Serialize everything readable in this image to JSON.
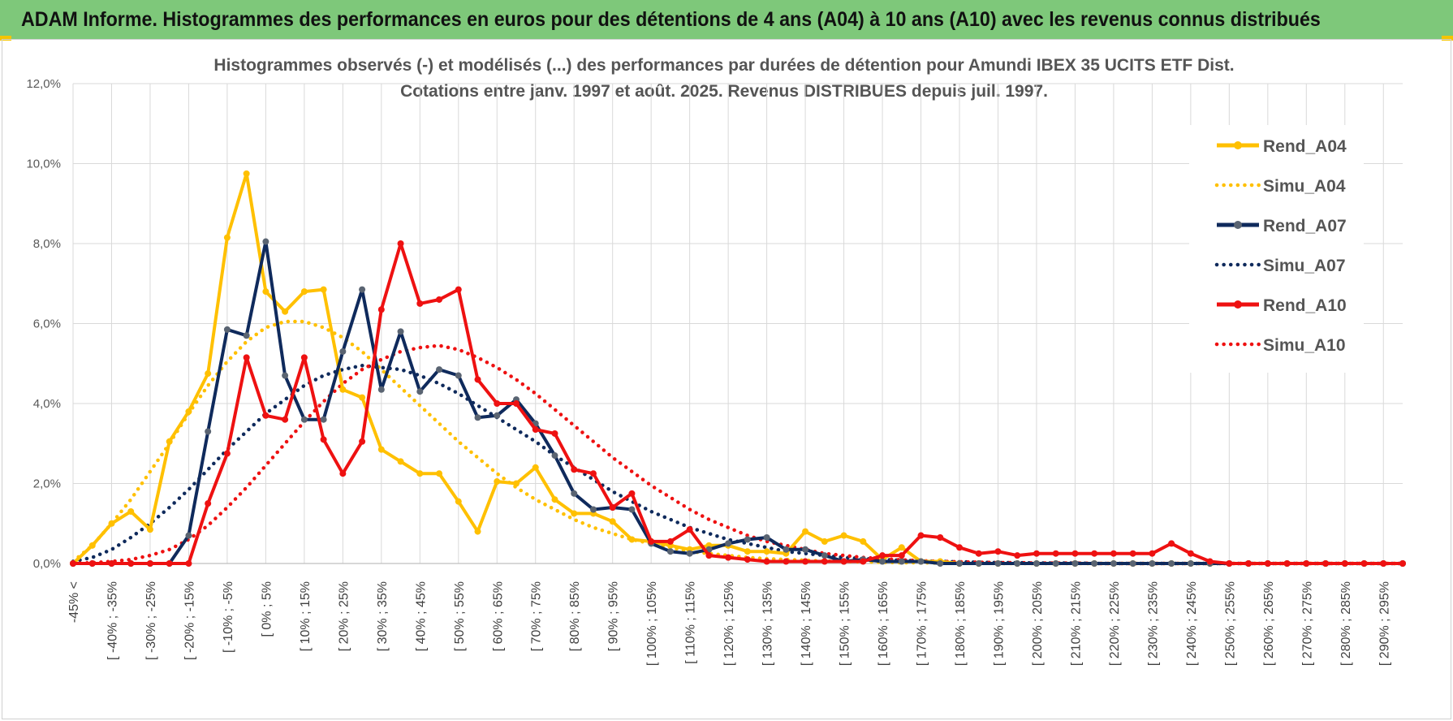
{
  "header": {
    "title": "ADAM Informe. Histogrammes des performances en euros pour des détentions de 4 ans (A04) à 10 ans (A10) avec les revenus connus distribués"
  },
  "chart_data": {
    "type": "line",
    "title": "Histogrammes observés (-) et modélisés (...) des performances par durées de détention pour Amundi IBEX 35 UCITS ETF Dist.",
    "subtitle": "Cotations entre janv. 1997 et août. 2025. Revenus DISTRIBUES depuis juil. 1997.",
    "xlabel": "",
    "ylabel": "",
    "ylim": [
      0,
      12
    ],
    "y_ticks": [
      "0,0%",
      "2,0%",
      "4,0%",
      "6,0%",
      "8,0%",
      "10,0%",
      "12,0%"
    ],
    "grid": true,
    "legend_position": "right",
    "x_tick_labels": [
      "-45% <",
      "[ -40% ; -35%",
      "[ -30% ; -25%",
      "[ -20% ; -15%",
      "[ -10% ; -5%",
      "[ 0% ; 5%",
      "[ 10% ; 15%",
      "[ 20% ; 25%",
      "[ 30% ; 35%",
      "[ 40% ; 45%",
      "[ 50% ; 55%",
      "[ 60% ; 65%",
      "[ 70% ; 75%",
      "[ 80% ; 85%",
      "[ 90% ; 95%",
      "[ 100% ; 105%",
      "[ 110% ; 115%",
      "[ 120% ; 125%",
      "[ 130% ; 135%",
      "[ 140% ; 145%",
      "[ 150% ; 155%",
      "[ 160% ; 165%",
      "[ 170% ; 175%",
      "[ 180% ; 185%",
      "[ 190% ; 195%",
      "[ 200% ; 205%",
      "[ 210% ; 215%",
      "[ 220% ; 225%",
      "[ 230% ; 235%",
      "[ 240% ; 245%",
      "[ 250% ; 255%",
      "[ 260% ; 265%",
      "[ 270% ; 275%",
      "[ 280% ; 285%",
      "[ 290% ; 295%"
    ],
    "series": [
      {
        "name": "Rend_A04",
        "style": "solid",
        "color": "#ffc000",
        "values": [
          0.0,
          0.45,
          1.0,
          1.3,
          0.85,
          3.05,
          3.8,
          4.75,
          8.15,
          9.75,
          6.8,
          6.3,
          6.8,
          6.85,
          4.35,
          4.15,
          2.85,
          2.55,
          2.25,
          2.25,
          1.55,
          0.8,
          2.05,
          2.0,
          2.4,
          1.6,
          1.25,
          1.25,
          1.05,
          0.6,
          0.55,
          0.45,
          0.35,
          0.45,
          0.45,
          0.3,
          0.3,
          0.25,
          0.8,
          0.55,
          0.7,
          0.55,
          0.1,
          0.4,
          0.05,
          0.05,
          0.0,
          0.0,
          0.0,
          0.0,
          0.0,
          0.0,
          0.0,
          0.0,
          0.0,
          0.0,
          0.0,
          0.0,
          0.0,
          0.0,
          0.0,
          0.0,
          0.0,
          0.0,
          0.0,
          0.0,
          0.0,
          0.0,
          0.0,
          0.0
        ]
      },
      {
        "name": "Simu_A04",
        "style": "dotted",
        "color": "#ffc000",
        "values": [
          0.05,
          0.45,
          1.0,
          1.6,
          2.3,
          3.0,
          3.75,
          4.45,
          5.05,
          5.55,
          5.9,
          6.05,
          6.05,
          5.9,
          5.65,
          5.3,
          4.85,
          4.4,
          3.95,
          3.5,
          3.05,
          2.65,
          2.25,
          1.9,
          1.6,
          1.35,
          1.1,
          0.9,
          0.75,
          0.6,
          0.5,
          0.4,
          0.3,
          0.25,
          0.2,
          0.15,
          0.12,
          0.1,
          0.08,
          0.06,
          0.05,
          0.04,
          0.03,
          0.02,
          0.02,
          0.01,
          0.01,
          0.01,
          0.0,
          0.0,
          0.0,
          0.0,
          0.0,
          0.0,
          0.0,
          0.0,
          0.0,
          0.0,
          0.0,
          0.0,
          0.0,
          0.0,
          0.0,
          0.0,
          0.0,
          0.0,
          0.0,
          0.0,
          0.0,
          0.0
        ]
      },
      {
        "name": "Rend_A07",
        "style": "solid",
        "color": "#0f2a5c",
        "values": [
          0.0,
          0.0,
          0.0,
          0.0,
          0.0,
          0.0,
          0.7,
          3.3,
          5.85,
          5.7,
          8.05,
          4.7,
          3.6,
          3.6,
          5.3,
          6.85,
          4.35,
          5.8,
          4.3,
          4.85,
          4.7,
          3.65,
          3.7,
          4.1,
          3.5,
          2.7,
          1.75,
          1.35,
          1.4,
          1.35,
          0.5,
          0.3,
          0.25,
          0.35,
          0.5,
          0.6,
          0.65,
          0.35,
          0.35,
          0.2,
          0.05,
          0.1,
          0.05,
          0.05,
          0.05,
          0.0,
          0.0,
          0.0,
          0.0,
          0.0,
          0.0,
          0.0,
          0.0,
          0.0,
          0.0,
          0.0,
          0.0,
          0.0,
          0.0,
          0.0,
          0.0,
          0.0,
          0.0,
          0.0,
          0.0,
          0.0,
          0.0,
          0.0,
          0.0,
          0.0
        ]
      },
      {
        "name": "Simu_A07",
        "style": "dotted",
        "color": "#0f2a5c",
        "values": [
          0.05,
          0.15,
          0.35,
          0.65,
          1.0,
          1.4,
          1.85,
          2.35,
          2.85,
          3.3,
          3.75,
          4.1,
          4.45,
          4.7,
          4.85,
          4.95,
          4.9,
          4.85,
          4.7,
          4.5,
          4.25,
          3.95,
          3.65,
          3.35,
          3.05,
          2.7,
          2.4,
          2.1,
          1.8,
          1.55,
          1.3,
          1.1,
          0.9,
          0.75,
          0.6,
          0.5,
          0.4,
          0.3,
          0.25,
          0.2,
          0.15,
          0.12,
          0.1,
          0.08,
          0.06,
          0.05,
          0.04,
          0.03,
          0.02,
          0.02,
          0.01,
          0.01,
          0.01,
          0.0,
          0.0,
          0.0,
          0.0,
          0.0,
          0.0,
          0.0,
          0.0,
          0.0,
          0.0,
          0.0,
          0.0,
          0.0,
          0.0,
          0.0,
          0.0,
          0.0
        ]
      },
      {
        "name": "Rend_A10",
        "style": "solid",
        "color": "#ee1111",
        "values": [
          0.0,
          0.0,
          0.0,
          0.0,
          0.0,
          0.0,
          0.0,
          1.5,
          2.75,
          5.15,
          3.7,
          3.6,
          5.15,
          3.1,
          2.25,
          3.05,
          6.35,
          8.0,
          6.5,
          6.6,
          6.85,
          4.6,
          4.0,
          4.0,
          3.35,
          3.25,
          2.35,
          2.25,
          1.4,
          1.75,
          0.55,
          0.55,
          0.85,
          0.2,
          0.15,
          0.1,
          0.05,
          0.05,
          0.05,
          0.05,
          0.05,
          0.05,
          0.2,
          0.2,
          0.7,
          0.65,
          0.4,
          0.25,
          0.3,
          0.2,
          0.25,
          0.25,
          0.25,
          0.25,
          0.25,
          0.25,
          0.25,
          0.5,
          0.25,
          0.05,
          0.0,
          0.0,
          0.0,
          0.0,
          0.0,
          0.0,
          0.0,
          0.0,
          0.0,
          0.0
        ]
      },
      {
        "name": "Simu_A10",
        "style": "dotted",
        "color": "#ee1111",
        "values": [
          0.0,
          0.02,
          0.05,
          0.1,
          0.2,
          0.35,
          0.6,
          0.95,
          1.4,
          1.9,
          2.45,
          3.0,
          3.55,
          4.05,
          4.5,
          4.85,
          5.1,
          5.3,
          5.4,
          5.45,
          5.35,
          5.15,
          4.9,
          4.6,
          4.25,
          3.85,
          3.45,
          3.05,
          2.65,
          2.3,
          1.95,
          1.65,
          1.35,
          1.1,
          0.9,
          0.7,
          0.55,
          0.45,
          0.35,
          0.25,
          0.2,
          0.15,
          0.12,
          0.09,
          0.07,
          0.05,
          0.04,
          0.03,
          0.02,
          0.02,
          0.01,
          0.01,
          0.01,
          0.0,
          0.0,
          0.0,
          0.0,
          0.0,
          0.0,
          0.0,
          0.0,
          0.0,
          0.0,
          0.0,
          0.0,
          0.0,
          0.0,
          0.0,
          0.0,
          0.0
        ]
      }
    ]
  }
}
